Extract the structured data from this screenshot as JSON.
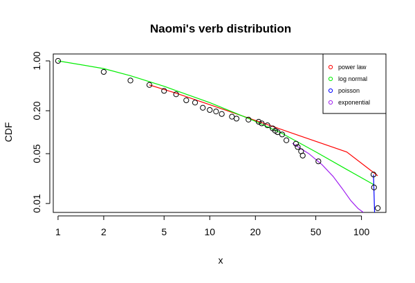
{
  "chart_data": {
    "type": "scatter",
    "title": "Naomi's verb distribution",
    "xlabel": "x",
    "ylabel": "CDF",
    "x_scale": "log",
    "y_scale": "log",
    "xlim": [
      0.93,
      145
    ],
    "ylim": [
      0.0075,
      1.25
    ],
    "x_ticks": [
      {
        "value": 1,
        "label": "1"
      },
      {
        "value": 2,
        "label": "2"
      },
      {
        "value": 5,
        "label": "5"
      },
      {
        "value": 10,
        "label": "10"
      },
      {
        "value": 20,
        "label": "20"
      },
      {
        "value": 50,
        "label": "50"
      },
      {
        "value": 100,
        "label": "100"
      }
    ],
    "y_ticks": [
      {
        "value": 0.01,
        "label": "0.01"
      },
      {
        "value": 0.05,
        "label": "0.05"
      },
      {
        "value": 0.2,
        "label": "0.20"
      },
      {
        "value": 1.0,
        "label": "1.00"
      }
    ],
    "points": [
      {
        "x": 1,
        "y": 1.0
      },
      {
        "x": 2,
        "y": 0.7
      },
      {
        "x": 3,
        "y": 0.53
      },
      {
        "x": 4,
        "y": 0.46
      },
      {
        "x": 5,
        "y": 0.38
      },
      {
        "x": 6,
        "y": 0.34
      },
      {
        "x": 7,
        "y": 0.28
      },
      {
        "x": 8,
        "y": 0.26
      },
      {
        "x": 9,
        "y": 0.22
      },
      {
        "x": 10,
        "y": 0.205
      },
      {
        "x": 11,
        "y": 0.195
      },
      {
        "x": 12,
        "y": 0.18
      },
      {
        "x": 14,
        "y": 0.165
      },
      {
        "x": 15,
        "y": 0.155
      },
      {
        "x": 18,
        "y": 0.15
      },
      {
        "x": 21,
        "y": 0.14
      },
      {
        "x": 22,
        "y": 0.133
      },
      {
        "x": 24,
        "y": 0.125
      },
      {
        "x": 26,
        "y": 0.113
      },
      {
        "x": 27,
        "y": 0.105
      },
      {
        "x": 28,
        "y": 0.1
      },
      {
        "x": 30,
        "y": 0.093
      },
      {
        "x": 32,
        "y": 0.077
      },
      {
        "x": 37,
        "y": 0.069
      },
      {
        "x": 38,
        "y": 0.062
      },
      {
        "x": 40,
        "y": 0.054
      },
      {
        "x": 41,
        "y": 0.047
      },
      {
        "x": 52,
        "y": 0.039
      },
      {
        "x": 120,
        "y": 0.0255
      },
      {
        "x": 121,
        "y": 0.0168
      },
      {
        "x": 128,
        "y": 0.0086
      }
    ],
    "series": [
      {
        "name": "power law",
        "color": "#ff0000",
        "x": [
          4,
          6,
          10,
          20,
          40,
          80,
          128
        ],
        "y": [
          0.46,
          0.352,
          0.243,
          0.146,
          0.0878,
          0.0528,
          0.0245
        ]
      },
      {
        "name": "log normal",
        "color": "#00ee00",
        "x": [
          1,
          2,
          3,
          5,
          10,
          20,
          30,
          50,
          80,
          120
        ],
        "y": [
          1.0,
          0.78,
          0.62,
          0.44,
          0.26,
          0.142,
          0.096,
          0.053,
          0.03,
          0.0185
        ]
      },
      {
        "name": "poisson",
        "color": "#0000ff",
        "x": [
          120,
          121,
          122
        ],
        "y": [
          0.0255,
          0.014,
          0.0075
        ]
      },
      {
        "name": "exponential",
        "color": "#a020f0",
        "x": [
          35,
          45,
          55,
          65,
          75,
          85,
          95,
          103
        ],
        "y": [
          0.07,
          0.05,
          0.035,
          0.024,
          0.016,
          0.011,
          0.0085,
          0.0075
        ]
      }
    ],
    "legend": {
      "position": "top-right",
      "entries": [
        {
          "label": "power law",
          "color": "#ff0000"
        },
        {
          "label": "log normal",
          "color": "#00ee00"
        },
        {
          "label": "poisson",
          "color": "#0000ff"
        },
        {
          "label": "exponential",
          "color": "#a020f0"
        }
      ]
    },
    "grid": false
  }
}
